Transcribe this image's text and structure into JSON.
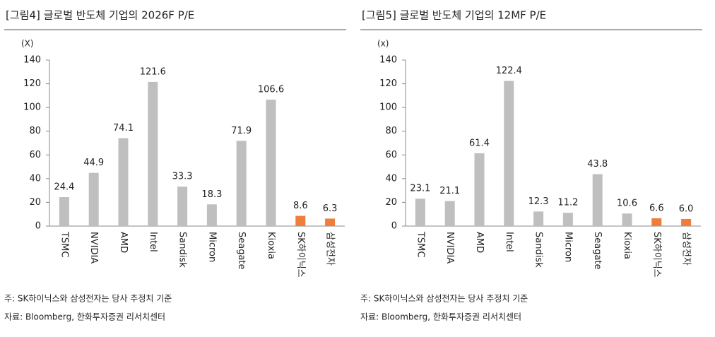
{
  "chart_data": [
    {
      "type": "bar",
      "title": "[그림4]   글로벌 반도체 기업의 2026F P/E",
      "y_label": "(X)",
      "categories": [
        "TSMC",
        "NVIDIA",
        "AMD",
        "Intel",
        "Sandisk",
        "Micron",
        "Seagate",
        "Kioxia",
        "SK하이닉스",
        "삼성전자"
      ],
      "values": [
        24.4,
        44.9,
        74.1,
        121.6,
        33.3,
        18.3,
        71.9,
        106.6,
        8.6,
        6.3
      ],
      "value_labels": [
        "24.4",
        "44.9",
        "74.1",
        "121.6",
        "33.3",
        "18.3",
        "71.9",
        "106.6",
        "8.6",
        "6.3"
      ],
      "colors": [
        "#bfbfbf",
        "#bfbfbf",
        "#bfbfbf",
        "#bfbfbf",
        "#bfbfbf",
        "#bfbfbf",
        "#bfbfbf",
        "#bfbfbf",
        "#ef7d3c",
        "#ef7d3c"
      ],
      "ylim": [
        0,
        140
      ],
      "yticks": [
        0,
        20,
        40,
        60,
        80,
        100,
        120,
        140
      ],
      "grid": false,
      "note": "주: SK하이닉스와 삼성전자는 당사 추정치 기준",
      "source": "자료: Bloomberg, 한화투자증권 리서치센터"
    },
    {
      "type": "bar",
      "title": "[그림5]   글로벌 반도체 기업의 12MF P/E",
      "y_label": "(x)",
      "categories": [
        "TSMC",
        "NVIDIA",
        "AMD",
        "Intel",
        "Sandisk",
        "Micron",
        "Seagate",
        "Kioxia",
        "SK하이닉스",
        "삼성전자"
      ],
      "values": [
        23.1,
        21.1,
        61.4,
        122.4,
        12.3,
        11.2,
        43.8,
        10.6,
        6.6,
        6.0
      ],
      "value_labels": [
        "23.1",
        "21.1",
        "61.4",
        "122.4",
        "12.3",
        "11.2",
        "43.8",
        "10.6",
        "6.6",
        "6.0"
      ],
      "colors": [
        "#bfbfbf",
        "#bfbfbf",
        "#bfbfbf",
        "#bfbfbf",
        "#bfbfbf",
        "#bfbfbf",
        "#bfbfbf",
        "#bfbfbf",
        "#ef7d3c",
        "#ef7d3c"
      ],
      "ylim": [
        0,
        140
      ],
      "yticks": [
        0,
        20,
        40,
        60,
        80,
        100,
        120,
        140
      ],
      "grid": false,
      "note": "주: SK하이닉스와 삼성전자는 당사 추정치 기준",
      "source": "자료: Bloomberg, 한화투자증권 리서치센터"
    }
  ]
}
